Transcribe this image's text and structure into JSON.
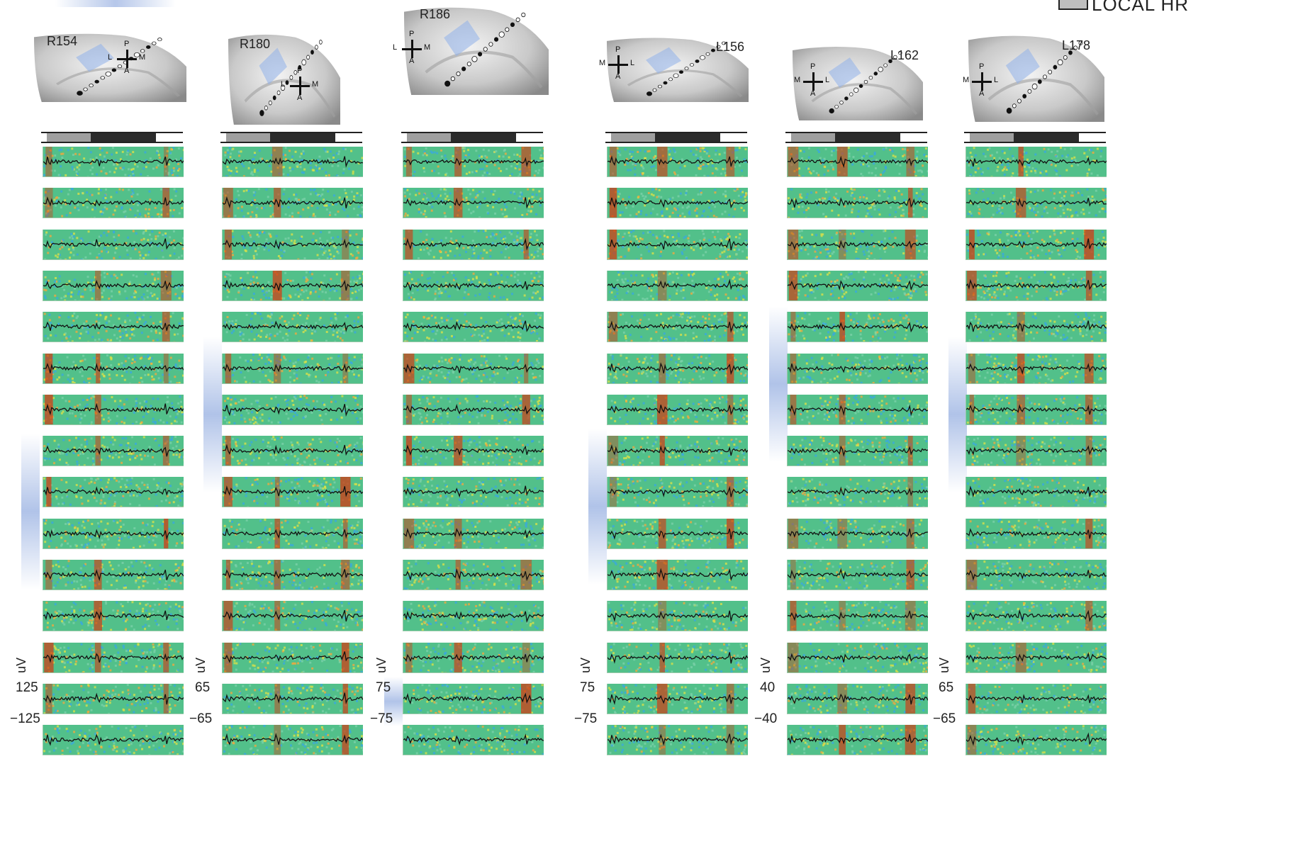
{
  "legend": {
    "label": "LOCAL HR"
  },
  "columns": [
    {
      "id": "R154",
      "orient": {
        "top": "P",
        "bottom": "A",
        "left": "L",
        "right": "M"
      },
      "scale": {
        "max": "125",
        "min": "−125",
        "unit": "uV"
      }
    },
    {
      "id": "R180",
      "orient": {
        "top": "P",
        "bottom": "A",
        "left": "L",
        "right": "M"
      },
      "scale": {
        "max": "65",
        "min": "−65",
        "unit": "uV"
      }
    },
    {
      "id": "R186",
      "orient": {
        "top": "P",
        "bottom": "A",
        "left": "L",
        "right": "M"
      },
      "scale": {
        "max": "75",
        "min": "−75",
        "unit": "uV"
      }
    },
    {
      "id": "L156",
      "orient": {
        "top": "P",
        "bottom": "A",
        "left": "M",
        "right": "L"
      },
      "scale": {
        "max": "75",
        "min": "−75",
        "unit": "uV"
      }
    },
    {
      "id": "L162",
      "orient": {
        "top": "P",
        "bottom": "A",
        "left": "M",
        "right": "L"
      },
      "scale": {
        "max": "40",
        "min": "−40",
        "unit": "uV"
      }
    },
    {
      "id": "L178",
      "orient": {
        "top": "P",
        "bottom": "A",
        "left": "M",
        "right": "L"
      },
      "scale": {
        "max": "65",
        "min": "−65",
        "unit": "uV"
      }
    }
  ],
  "colors": {
    "heat_bg": "#52c08a",
    "trace": "#111111",
    "hot": "#d23a12",
    "cool": "#2a8fd8",
    "highlight": "#9cb5e6"
  },
  "rows_per_column": 15,
  "colorbar_ticks": [
    "",
    "",
    "",
    ""
  ]
}
